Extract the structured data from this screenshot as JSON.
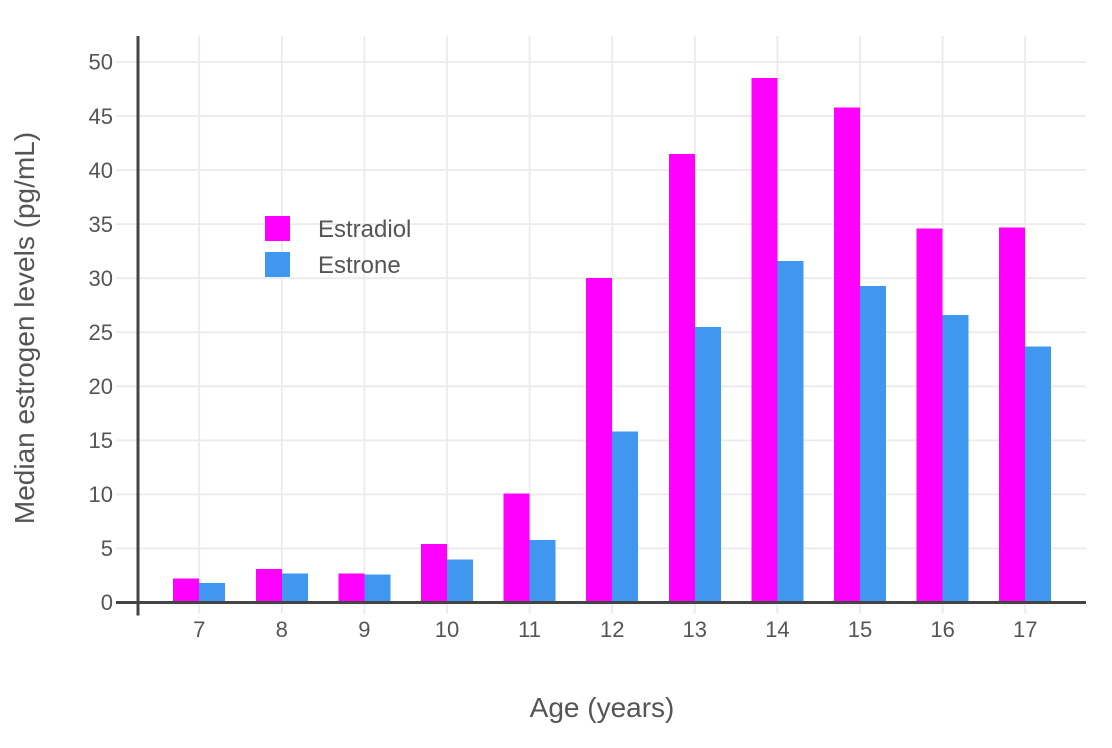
{
  "chart_data": {
    "type": "bar",
    "bar_mode": "grouped",
    "title": "",
    "xlabel": "Age (years)",
    "ylabel": "Median estrogen levels (pg/mL)",
    "categories": [
      "7",
      "8",
      "9",
      "10",
      "11",
      "12",
      "13",
      "14",
      "15",
      "16",
      "17"
    ],
    "series": [
      {
        "name": "Estradiol",
        "color": "#FF00FE",
        "values": [
          2.2,
          3.1,
          2.7,
          5.4,
          10.1,
          30.0,
          41.5,
          48.5,
          45.8,
          34.6,
          34.7
        ]
      },
      {
        "name": "Estrone",
        "color": "#4097F0",
        "values": [
          1.8,
          2.7,
          2.6,
          4.0,
          5.8,
          15.8,
          25.5,
          31.6,
          29.3,
          26.6,
          23.7
        ]
      }
    ],
    "ylim": [
      0,
      52.5
    ],
    "yticks": [
      0,
      5,
      10,
      15,
      20,
      25,
      30,
      35,
      40,
      45,
      50
    ],
    "grid": true,
    "legend_position": "inside-top-left"
  },
  "colors": {
    "estradiol": "#FF00FE",
    "estrone": "#4097F0",
    "axis_line": "#444444",
    "grid_line": "#EBEBEB",
    "text": "#555555",
    "background": "#FFFFFF"
  }
}
